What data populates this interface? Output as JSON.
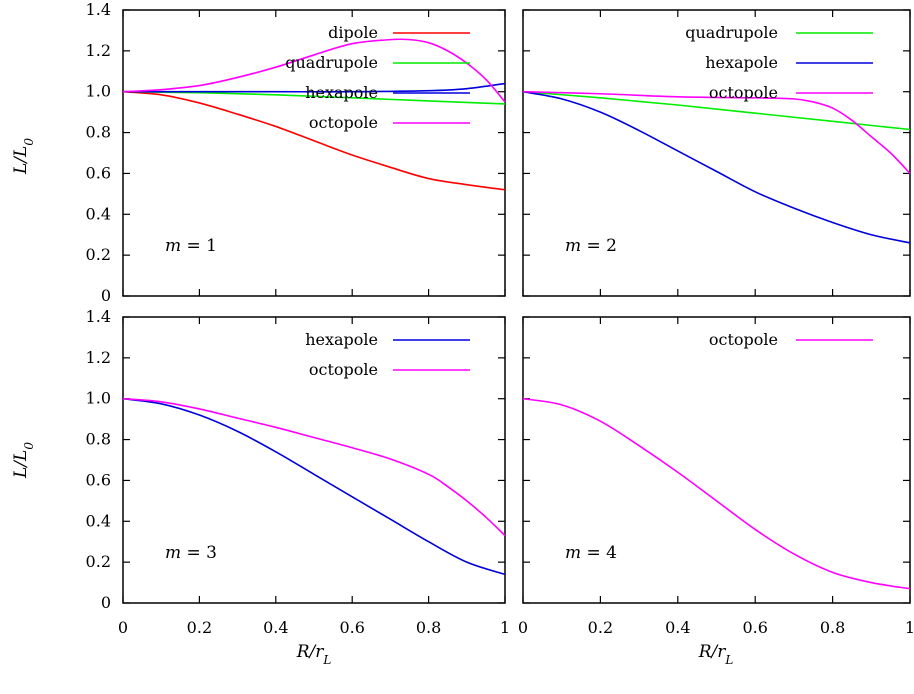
{
  "xlabel": "R/r_L",
  "ylabel": "L/L_0",
  "colors": {
    "dipole": "#ff0000",
    "quadrupole": "#00ee00",
    "hexapole": "#0000dd",
    "octopole": "#ff00ff"
  },
  "chart_data": [
    {
      "type": "line",
      "label": "m = 1",
      "xlim": [
        0,
        1
      ],
      "ylim": [
        0,
        1.4
      ],
      "xticks": [
        "0",
        "0.2",
        "0.4",
        "0.6",
        "0.8",
        "1"
      ],
      "yticks": [
        "0",
        "0.2",
        "0.4",
        "0.6",
        "0.8",
        "1.0",
        "1.2",
        "1.4"
      ],
      "legend": "top-right",
      "series": [
        {
          "name": "dipole",
          "color": "#ff0000",
          "x": [
            0,
            0.1,
            0.2,
            0.3,
            0.4,
            0.5,
            0.6,
            0.7,
            0.8,
            0.9,
            1.0
          ],
          "y": [
            1.0,
            0.985,
            0.945,
            0.89,
            0.83,
            0.76,
            0.69,
            0.63,
            0.575,
            0.545,
            0.52
          ]
        },
        {
          "name": "quadrupole",
          "color": "#00ee00",
          "x": [
            0,
            0.2,
            0.4,
            0.6,
            0.8,
            1.0
          ],
          "y": [
            1.0,
            0.995,
            0.985,
            0.97,
            0.955,
            0.94
          ]
        },
        {
          "name": "hexapole",
          "color": "#0000dd",
          "x": [
            0,
            0.2,
            0.4,
            0.6,
            0.8,
            0.9,
            1.0
          ],
          "y": [
            1.0,
            1.0,
            1.0,
            1.0,
            1.005,
            1.015,
            1.04
          ]
        },
        {
          "name": "octopole",
          "color": "#ff00ff",
          "x": [
            0,
            0.1,
            0.2,
            0.3,
            0.4,
            0.5,
            0.6,
            0.7,
            0.75,
            0.8,
            0.85,
            0.9,
            0.95,
            1.0
          ],
          "y": [
            1.0,
            1.01,
            1.03,
            1.07,
            1.12,
            1.18,
            1.235,
            1.255,
            1.255,
            1.24,
            1.2,
            1.14,
            1.06,
            0.95
          ]
        }
      ]
    },
    {
      "type": "line",
      "label": "m = 2",
      "xlim": [
        0,
        1
      ],
      "ylim": [
        0,
        1.4
      ],
      "xticks": [
        "0",
        "0.2",
        "0.4",
        "0.6",
        "0.8",
        "1"
      ],
      "yticks": [],
      "legend": "top-right",
      "series": [
        {
          "name": "quadrupole",
          "color": "#00ee00",
          "x": [
            0,
            0.2,
            0.4,
            0.6,
            0.8,
            1.0
          ],
          "y": [
            1.0,
            0.97,
            0.935,
            0.895,
            0.855,
            0.815
          ]
        },
        {
          "name": "hexapole",
          "color": "#0000dd",
          "x": [
            0,
            0.1,
            0.2,
            0.3,
            0.4,
            0.5,
            0.6,
            0.7,
            0.8,
            0.9,
            1.0
          ],
          "y": [
            1.0,
            0.965,
            0.9,
            0.81,
            0.71,
            0.61,
            0.51,
            0.43,
            0.36,
            0.3,
            0.26
          ]
        },
        {
          "name": "octopole",
          "color": "#ff00ff",
          "x": [
            0,
            0.2,
            0.4,
            0.6,
            0.7,
            0.75,
            0.8,
            0.85,
            0.9,
            0.95,
            1.0
          ],
          "y": [
            1.0,
            0.99,
            0.975,
            0.97,
            0.965,
            0.95,
            0.92,
            0.86,
            0.78,
            0.7,
            0.6
          ]
        }
      ]
    },
    {
      "type": "line",
      "label": "m = 3",
      "xlim": [
        0,
        1
      ],
      "ylim": [
        0,
        1.4
      ],
      "xticks": [
        "0",
        "0.2",
        "0.4",
        "0.6",
        "0.8",
        "1"
      ],
      "yticks": [
        "0",
        "0.2",
        "0.4",
        "0.6",
        "0.8",
        "1.0",
        "1.2",
        "1.4"
      ],
      "legend": "top-right",
      "series": [
        {
          "name": "hexapole",
          "color": "#0000dd",
          "x": [
            0,
            0.1,
            0.2,
            0.3,
            0.4,
            0.5,
            0.6,
            0.7,
            0.8,
            0.9,
            1.0
          ],
          "y": [
            1.0,
            0.975,
            0.92,
            0.84,
            0.74,
            0.63,
            0.52,
            0.41,
            0.3,
            0.2,
            0.14
          ]
        },
        {
          "name": "octopole",
          "color": "#ff00ff",
          "x": [
            0,
            0.1,
            0.2,
            0.3,
            0.4,
            0.5,
            0.6,
            0.7,
            0.8,
            0.85,
            0.9,
            0.95,
            1.0
          ],
          "y": [
            1.0,
            0.985,
            0.95,
            0.905,
            0.86,
            0.81,
            0.76,
            0.705,
            0.63,
            0.57,
            0.5,
            0.42,
            0.33
          ]
        }
      ]
    },
    {
      "type": "line",
      "label": "m = 4",
      "xlim": [
        0,
        1
      ],
      "ylim": [
        0,
        1.4
      ],
      "xticks": [
        "0",
        "0.2",
        "0.4",
        "0.6",
        "0.8",
        "1"
      ],
      "yticks": [],
      "legend": "top-right",
      "series": [
        {
          "name": "octopole",
          "color": "#ff00ff",
          "x": [
            0,
            0.1,
            0.2,
            0.3,
            0.4,
            0.5,
            0.6,
            0.7,
            0.8,
            0.9,
            1.0
          ],
          "y": [
            1.0,
            0.97,
            0.89,
            0.77,
            0.64,
            0.5,
            0.36,
            0.24,
            0.15,
            0.1,
            0.07
          ]
        }
      ]
    }
  ]
}
